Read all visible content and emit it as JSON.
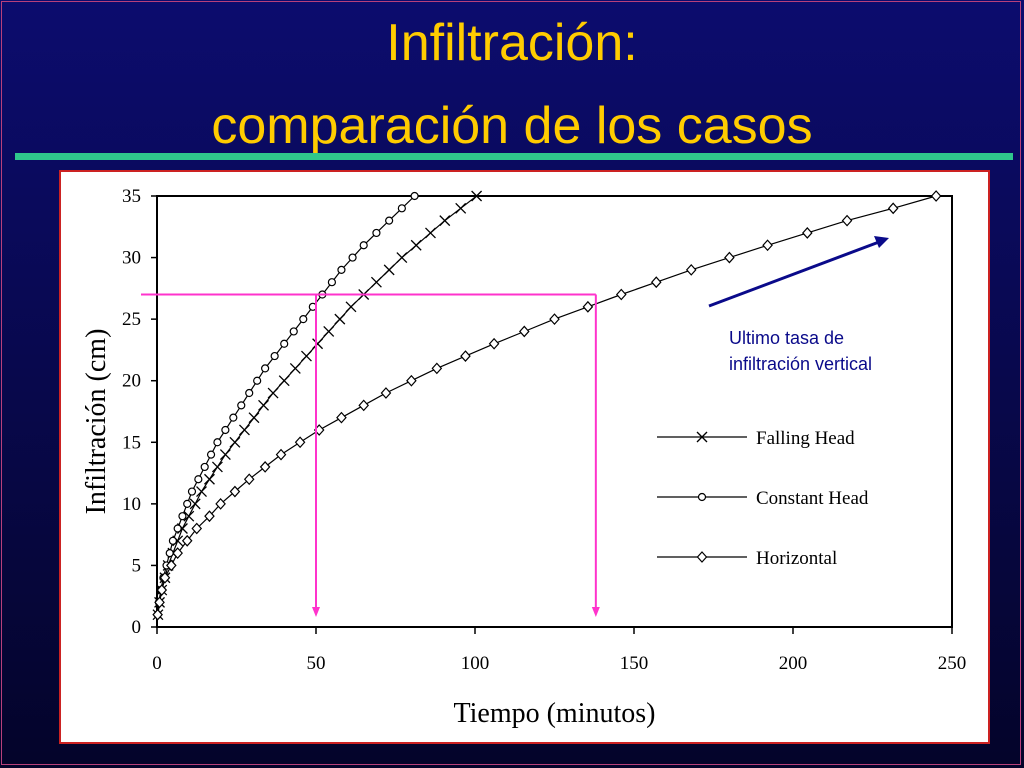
{
  "slide": {
    "title_line1": "Infiltración:",
    "title_line2": "comparación de los casos"
  },
  "colors": {
    "background": "#0c0c6e",
    "title": "#ffcc00",
    "rule": "#2fc78c",
    "guide": "#ff33cc",
    "arrow": "#0a0a8a",
    "annotation": "#0a0a8a"
  },
  "chart_data": {
    "type": "line",
    "xlabel": "Tiempo (minutos)",
    "ylabel": "Infiltración (cm)",
    "xlim": [
      0,
      250
    ],
    "ylim": [
      0,
      35
    ],
    "xticks": [
      0,
      50,
      100,
      150,
      200,
      250
    ],
    "yticks": [
      0,
      5,
      10,
      15,
      20,
      25,
      30,
      35
    ],
    "legend_position": "right",
    "series": [
      {
        "name": "Falling Head",
        "marker": "x",
        "points": [
          [
            0.3,
            1
          ],
          [
            0.8,
            2
          ],
          [
            1.5,
            3
          ],
          [
            2.5,
            4
          ],
          [
            3.5,
            5
          ],
          [
            5,
            6
          ],
          [
            6.5,
            7
          ],
          [
            8,
            8
          ],
          [
            10,
            9
          ],
          [
            12,
            10
          ],
          [
            14,
            11
          ],
          [
            16.5,
            12
          ],
          [
            19,
            13
          ],
          [
            21.5,
            14
          ],
          [
            24.5,
            15
          ],
          [
            27.5,
            16
          ],
          [
            30.5,
            17
          ],
          [
            33.5,
            18
          ],
          [
            36.5,
            19
          ],
          [
            40,
            20
          ],
          [
            43.5,
            21
          ],
          [
            47,
            22
          ],
          [
            50.5,
            23
          ],
          [
            54,
            24
          ],
          [
            57.5,
            25
          ],
          [
            61,
            26
          ],
          [
            65,
            27
          ],
          [
            69,
            28
          ],
          [
            73,
            29
          ],
          [
            77,
            30
          ],
          [
            81.5,
            31
          ],
          [
            86,
            32
          ],
          [
            90.5,
            33
          ],
          [
            95.5,
            34
          ],
          [
            100.5,
            35
          ]
        ]
      },
      {
        "name": "Constant Head",
        "marker": "circle",
        "points": [
          [
            0.2,
            1
          ],
          [
            0.6,
            2
          ],
          [
            1.2,
            3
          ],
          [
            2,
            4
          ],
          [
            3,
            5
          ],
          [
            4,
            6
          ],
          [
            5,
            7
          ],
          [
            6.5,
            8
          ],
          [
            8,
            9
          ],
          [
            9.5,
            10
          ],
          [
            11,
            11
          ],
          [
            13,
            12
          ],
          [
            15,
            13
          ],
          [
            17,
            14
          ],
          [
            19,
            15
          ],
          [
            21.5,
            16
          ],
          [
            24,
            17
          ],
          [
            26.5,
            18
          ],
          [
            29,
            19
          ],
          [
            31.5,
            20
          ],
          [
            34,
            21
          ],
          [
            37,
            22
          ],
          [
            40,
            23
          ],
          [
            43,
            24
          ],
          [
            46,
            25
          ],
          [
            49,
            26
          ],
          [
            52,
            27
          ],
          [
            55,
            28
          ],
          [
            58,
            29
          ],
          [
            61.5,
            30
          ],
          [
            65,
            31
          ],
          [
            69,
            32
          ],
          [
            73,
            33
          ],
          [
            77,
            34
          ],
          [
            81,
            35
          ]
        ]
      },
      {
        "name": "Horizontal",
        "marker": "diamond",
        "points": [
          [
            0.2,
            1
          ],
          [
            0.8,
            2
          ],
          [
            1.5,
            3
          ],
          [
            2.5,
            4
          ],
          [
            4.5,
            5
          ],
          [
            6.5,
            6
          ],
          [
            9.5,
            7
          ],
          [
            12.5,
            8
          ],
          [
            16.5,
            9
          ],
          [
            20,
            10
          ],
          [
            24.5,
            11
          ],
          [
            29,
            12
          ],
          [
            34,
            13
          ],
          [
            39,
            14
          ],
          [
            45,
            15
          ],
          [
            51,
            16
          ],
          [
            58,
            17
          ],
          [
            65,
            18
          ],
          [
            72,
            19
          ],
          [
            80,
            20
          ],
          [
            88,
            21
          ],
          [
            97,
            22
          ],
          [
            106,
            23
          ],
          [
            115.5,
            24
          ],
          [
            125,
            25
          ],
          [
            135.5,
            26
          ],
          [
            146,
            27
          ],
          [
            157,
            28
          ],
          [
            168,
            29
          ],
          [
            180,
            30
          ],
          [
            192,
            31
          ],
          [
            204.5,
            32
          ],
          [
            217,
            33
          ],
          [
            231.5,
            34
          ],
          [
            245,
            35
          ]
        ]
      }
    ],
    "annotations": {
      "guide_points": [
        {
          "x": 50,
          "y": 27
        },
        {
          "x": 138,
          "y": 27
        }
      ],
      "arrow_text_line1": "Ultimo tasa de",
      "arrow_text_line2": "infiltración vertical"
    }
  }
}
